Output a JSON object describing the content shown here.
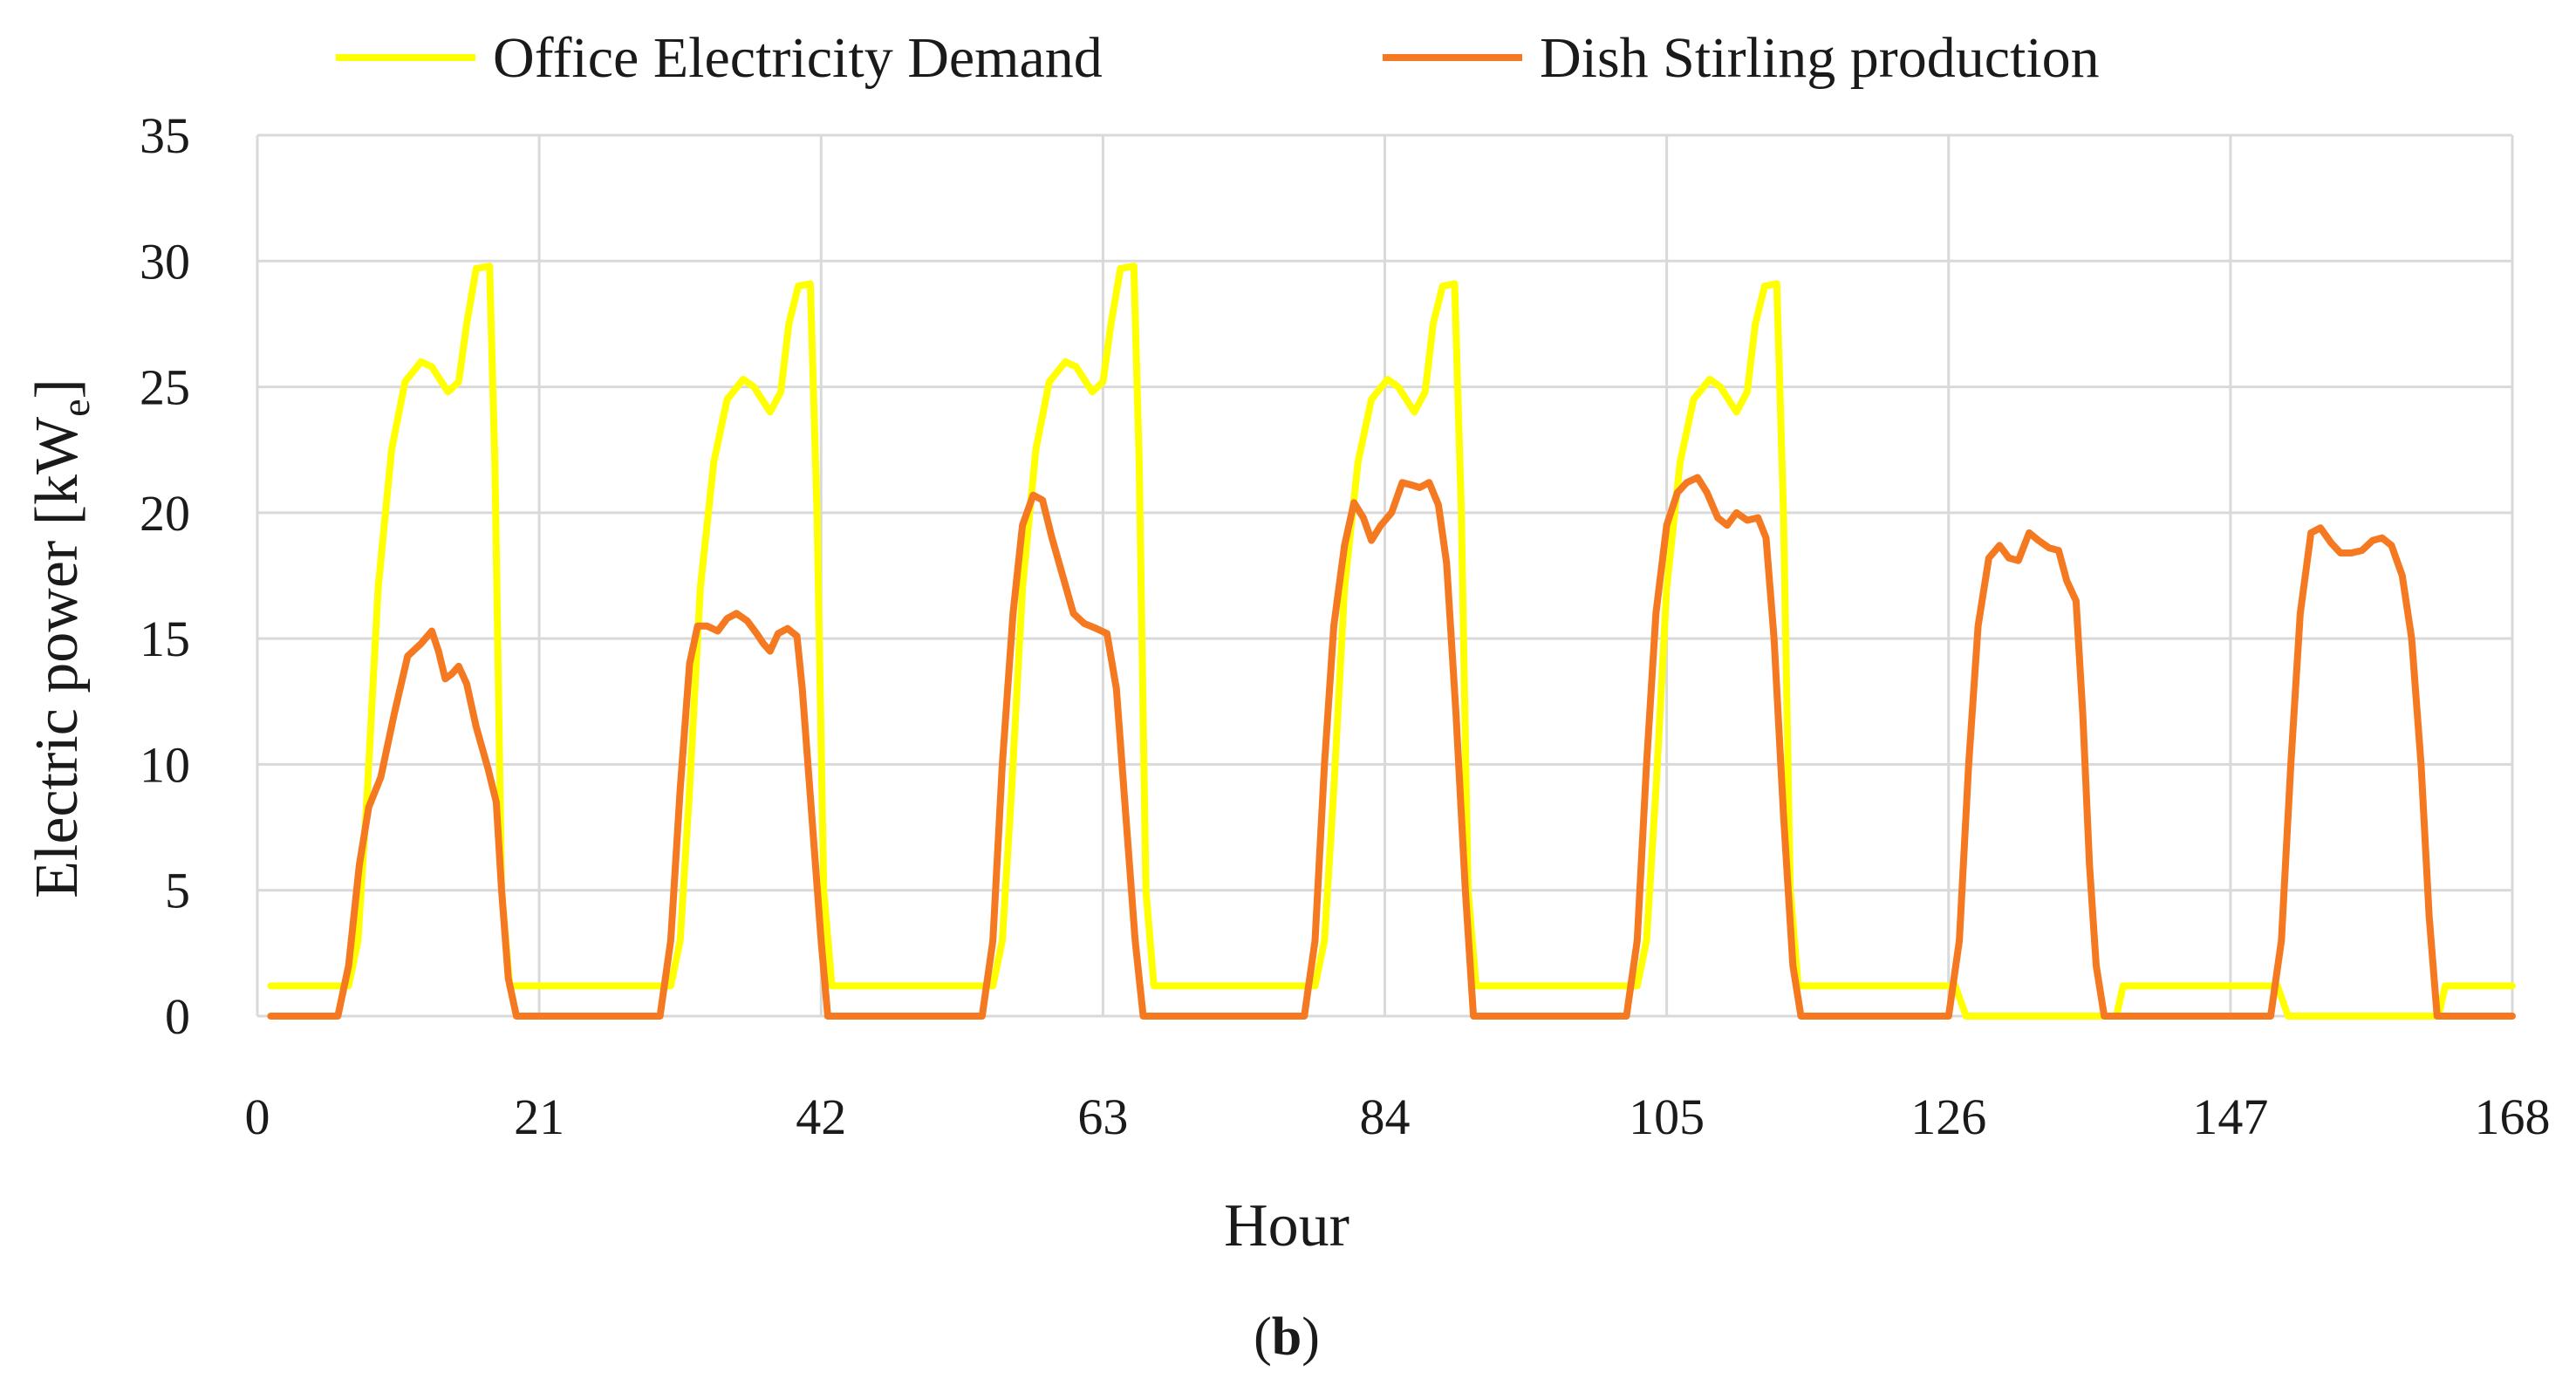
{
  "chart_data": {
    "type": "line",
    "xlabel": "Hour",
    "ylabel_main": "Electric power [kW",
    "ylabel_sub": "e",
    "ylabel_close": "]",
    "caption_open": "(",
    "caption_letter": "b",
    "caption_close": ")",
    "xlim": [
      0,
      168
    ],
    "ylim": [
      0,
      35
    ],
    "x_ticks": [
      0,
      21,
      42,
      63,
      84,
      105,
      126,
      147,
      168
    ],
    "x_tick_labels": [
      "0",
      "21",
      "42",
      "63",
      "84",
      "105",
      "126",
      "147",
      "168"
    ],
    "y_ticks": [
      0,
      5,
      10,
      15,
      20,
      25,
      30,
      35
    ],
    "y_tick_labels": [
      "0",
      "5",
      "10",
      "15",
      "20",
      "25",
      "30",
      "35"
    ],
    "grid": true,
    "legend_position": "top",
    "series": [
      {
        "name": "Office Electricity Demand",
        "color": "#ffff00",
        "points": [
          [
            1,
            1.2
          ],
          [
            6.8,
            1.2
          ],
          [
            7.5,
            3
          ],
          [
            8.2,
            9
          ],
          [
            9,
            17
          ],
          [
            10,
            22.5
          ],
          [
            11,
            25.2
          ],
          [
            12.2,
            26
          ],
          [
            13,
            25.8
          ],
          [
            14.2,
            24.8
          ],
          [
            15,
            25.2
          ],
          [
            15.6,
            27.5
          ],
          [
            16.3,
            29.7
          ],
          [
            17.3,
            29.8
          ],
          [
            17.7,
            22
          ],
          [
            18.2,
            5
          ],
          [
            18.8,
            1.2
          ],
          [
            30.8,
            1.2
          ],
          [
            31.5,
            3
          ],
          [
            32.2,
            9
          ],
          [
            33,
            17
          ],
          [
            34,
            22
          ],
          [
            35,
            24.5
          ],
          [
            36.2,
            25.3
          ],
          [
            37,
            25
          ],
          [
            38.2,
            24
          ],
          [
            39,
            24.8
          ],
          [
            39.6,
            27.5
          ],
          [
            40.3,
            29
          ],
          [
            41.2,
            29.1
          ],
          [
            41.7,
            20
          ],
          [
            42.2,
            5
          ],
          [
            42.8,
            1.2
          ],
          [
            54.8,
            1.2
          ],
          [
            55.5,
            3
          ],
          [
            56.2,
            9
          ],
          [
            57,
            17
          ],
          [
            58,
            22.5
          ],
          [
            59,
            25.2
          ],
          [
            60.2,
            26
          ],
          [
            61,
            25.8
          ],
          [
            62.2,
            24.8
          ],
          [
            63,
            25.2
          ],
          [
            63.6,
            27.5
          ],
          [
            64.3,
            29.7
          ],
          [
            65.3,
            29.8
          ],
          [
            65.7,
            22
          ],
          [
            66.2,
            5
          ],
          [
            66.8,
            1.2
          ],
          [
            78.8,
            1.2
          ],
          [
            79.5,
            3
          ],
          [
            80.2,
            9
          ],
          [
            81,
            17
          ],
          [
            82,
            22
          ],
          [
            83,
            24.5
          ],
          [
            84.2,
            25.3
          ],
          [
            85,
            25
          ],
          [
            86.2,
            24
          ],
          [
            87,
            24.8
          ],
          [
            87.6,
            27.5
          ],
          [
            88.3,
            29
          ],
          [
            89.2,
            29.1
          ],
          [
            89.7,
            20
          ],
          [
            90.2,
            5
          ],
          [
            90.8,
            1.2
          ],
          [
            102.8,
            1.2
          ],
          [
            103.5,
            3
          ],
          [
            104.2,
            9
          ],
          [
            105,
            17
          ],
          [
            106,
            22
          ],
          [
            107,
            24.5
          ],
          [
            108.2,
            25.3
          ],
          [
            109,
            25
          ],
          [
            110.2,
            24
          ],
          [
            111,
            24.8
          ],
          [
            111.6,
            27.5
          ],
          [
            112.3,
            29
          ],
          [
            113.2,
            29.1
          ],
          [
            113.7,
            20
          ],
          [
            114.2,
            5
          ],
          [
            114.8,
            1.2
          ],
          [
            126.5,
            1.2
          ],
          [
            127.3,
            0
          ],
          [
            138.5,
            0
          ],
          [
            139,
            1.2
          ],
          [
            150.5,
            1.2
          ],
          [
            151.3,
            0
          ],
          [
            162.5,
            0
          ],
          [
            163,
            1.2
          ],
          [
            168,
            1.2
          ]
        ]
      },
      {
        "name": "Dish Stirling production",
        "color": "#f47920",
        "points": [
          [
            1,
            0
          ],
          [
            6,
            0
          ],
          [
            6.8,
            2
          ],
          [
            7.6,
            6
          ],
          [
            8.3,
            8.3
          ],
          [
            9.2,
            9.5
          ],
          [
            10.2,
            12
          ],
          [
            11.2,
            14.3
          ],
          [
            12.2,
            14.8
          ],
          [
            13,
            15.3
          ],
          [
            13.5,
            14.5
          ],
          [
            14,
            13.4
          ],
          [
            14.5,
            13.6
          ],
          [
            15,
            13.9
          ],
          [
            15.6,
            13.2
          ],
          [
            16.3,
            11.5
          ],
          [
            17.2,
            9.8
          ],
          [
            17.8,
            8.5
          ],
          [
            18.2,
            5
          ],
          [
            18.7,
            1.5
          ],
          [
            19.3,
            0
          ],
          [
            30,
            0
          ],
          [
            30.8,
            3
          ],
          [
            31.5,
            9
          ],
          [
            32.2,
            14
          ],
          [
            32.8,
            15.5
          ],
          [
            33.5,
            15.5
          ],
          [
            34.3,
            15.3
          ],
          [
            35,
            15.8
          ],
          [
            35.7,
            16
          ],
          [
            36.5,
            15.7
          ],
          [
            37.2,
            15.2
          ],
          [
            37.7,
            14.8
          ],
          [
            38.2,
            14.5
          ],
          [
            38.8,
            15.2
          ],
          [
            39.5,
            15.4
          ],
          [
            40.2,
            15.1
          ],
          [
            40.6,
            13
          ],
          [
            41.3,
            8
          ],
          [
            42,
            3
          ],
          [
            42.5,
            0
          ],
          [
            54,
            0
          ],
          [
            54.8,
            3
          ],
          [
            55.5,
            10
          ],
          [
            56.3,
            16
          ],
          [
            57,
            19.5
          ],
          [
            57.8,
            20.7
          ],
          [
            58.5,
            20.5
          ],
          [
            59.2,
            19
          ],
          [
            60,
            17.5
          ],
          [
            60.8,
            16
          ],
          [
            61.6,
            15.6
          ],
          [
            62.5,
            15.4
          ],
          [
            63.3,
            15.2
          ],
          [
            64,
            13
          ],
          [
            64.7,
            8
          ],
          [
            65.4,
            3
          ],
          [
            66,
            0
          ],
          [
            78,
            0
          ],
          [
            78.8,
            3
          ],
          [
            79.5,
            10
          ],
          [
            80.2,
            15.5
          ],
          [
            81,
            18.7
          ],
          [
            81.7,
            20.4
          ],
          [
            82.4,
            19.8
          ],
          [
            83,
            18.9
          ],
          [
            83.7,
            19.5
          ],
          [
            84.5,
            20
          ],
          [
            85.3,
            21.2
          ],
          [
            86,
            21.1
          ],
          [
            86.6,
            21
          ],
          [
            87.3,
            21.2
          ],
          [
            88,
            20.3
          ],
          [
            88.6,
            18
          ],
          [
            89.3,
            12
          ],
          [
            90,
            5
          ],
          [
            90.6,
            0
          ],
          [
            102,
            0
          ],
          [
            102.8,
            3
          ],
          [
            103.5,
            10
          ],
          [
            104.2,
            16
          ],
          [
            105,
            19.5
          ],
          [
            105.8,
            20.8
          ],
          [
            106.5,
            21.2
          ],
          [
            107.3,
            21.4
          ],
          [
            108,
            20.8
          ],
          [
            108.8,
            19.8
          ],
          [
            109.5,
            19.5
          ],
          [
            110.2,
            20
          ],
          [
            111,
            19.7
          ],
          [
            111.8,
            19.8
          ],
          [
            112.4,
            19
          ],
          [
            113,
            15
          ],
          [
            113.7,
            8
          ],
          [
            114.4,
            2
          ],
          [
            115,
            0
          ],
          [
            126,
            0
          ],
          [
            126.8,
            3
          ],
          [
            127.5,
            10
          ],
          [
            128.2,
            15.5
          ],
          [
            129,
            18.2
          ],
          [
            129.8,
            18.7
          ],
          [
            130.5,
            18.2
          ],
          [
            131.2,
            18.1
          ],
          [
            132,
            19.2
          ],
          [
            132.7,
            18.9
          ],
          [
            133.5,
            18.6
          ],
          [
            134.2,
            18.5
          ],
          [
            134.8,
            17.3
          ],
          [
            135.5,
            16.5
          ],
          [
            136,
            12
          ],
          [
            136.5,
            6
          ],
          [
            137,
            2
          ],
          [
            137.6,
            0
          ],
          [
            150,
            0
          ],
          [
            150.8,
            3
          ],
          [
            151.5,
            10
          ],
          [
            152.2,
            16
          ],
          [
            153,
            19.2
          ],
          [
            153.7,
            19.4
          ],
          [
            154.5,
            18.8
          ],
          [
            155.2,
            18.4
          ],
          [
            156,
            18.4
          ],
          [
            156.8,
            18.5
          ],
          [
            157.6,
            18.9
          ],
          [
            158.3,
            19
          ],
          [
            159,
            18.7
          ],
          [
            159.8,
            17.5
          ],
          [
            160.5,
            15
          ],
          [
            161.2,
            10
          ],
          [
            161.8,
            4
          ],
          [
            162.4,
            0
          ],
          [
            168,
            0
          ]
        ]
      }
    ]
  }
}
